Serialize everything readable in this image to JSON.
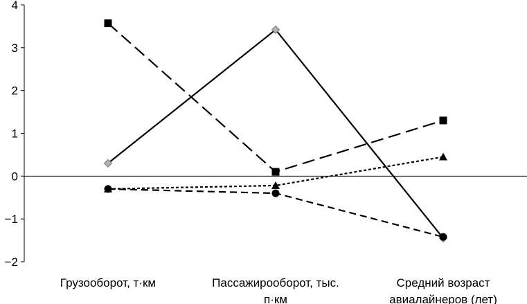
{
  "chart_data": {
    "type": "line",
    "title": "",
    "xlabel": "",
    "ylabel": "",
    "ylim": [
      -2,
      4
    ],
    "yticks": [
      "-2",
      "-1",
      "0",
      "1",
      "2",
      "3",
      "4"
    ],
    "grid": false,
    "legend": "none",
    "categories": [
      [
        "Грузооборот, т·км"
      ],
      [
        "Пассажирооборот, тыс.",
        "п·км"
      ],
      [
        "Средний возраст",
        "авиалайнеров (лет)"
      ]
    ],
    "series": [
      {
        "values": [
          0.3,
          3.42,
          -1.45
        ],
        "line": "solid",
        "marker": "diamond",
        "color": "#000000",
        "marker_color": "#b0b0b0"
      },
      {
        "values": [
          3.57,
          0.1,
          1.3
        ],
        "line": "long-dash",
        "marker": "square",
        "color": "#000000",
        "marker_color": "#000000"
      },
      {
        "values": [
          -0.3,
          -0.22,
          0.45
        ],
        "line": "dotted",
        "marker": "triangle",
        "color": "#000000",
        "marker_color": "#000000"
      },
      {
        "values": [
          -0.3,
          -0.4,
          -1.42
        ],
        "line": "dashed",
        "marker": "circle",
        "color": "#000000",
        "marker_color": "#000000"
      }
    ]
  }
}
